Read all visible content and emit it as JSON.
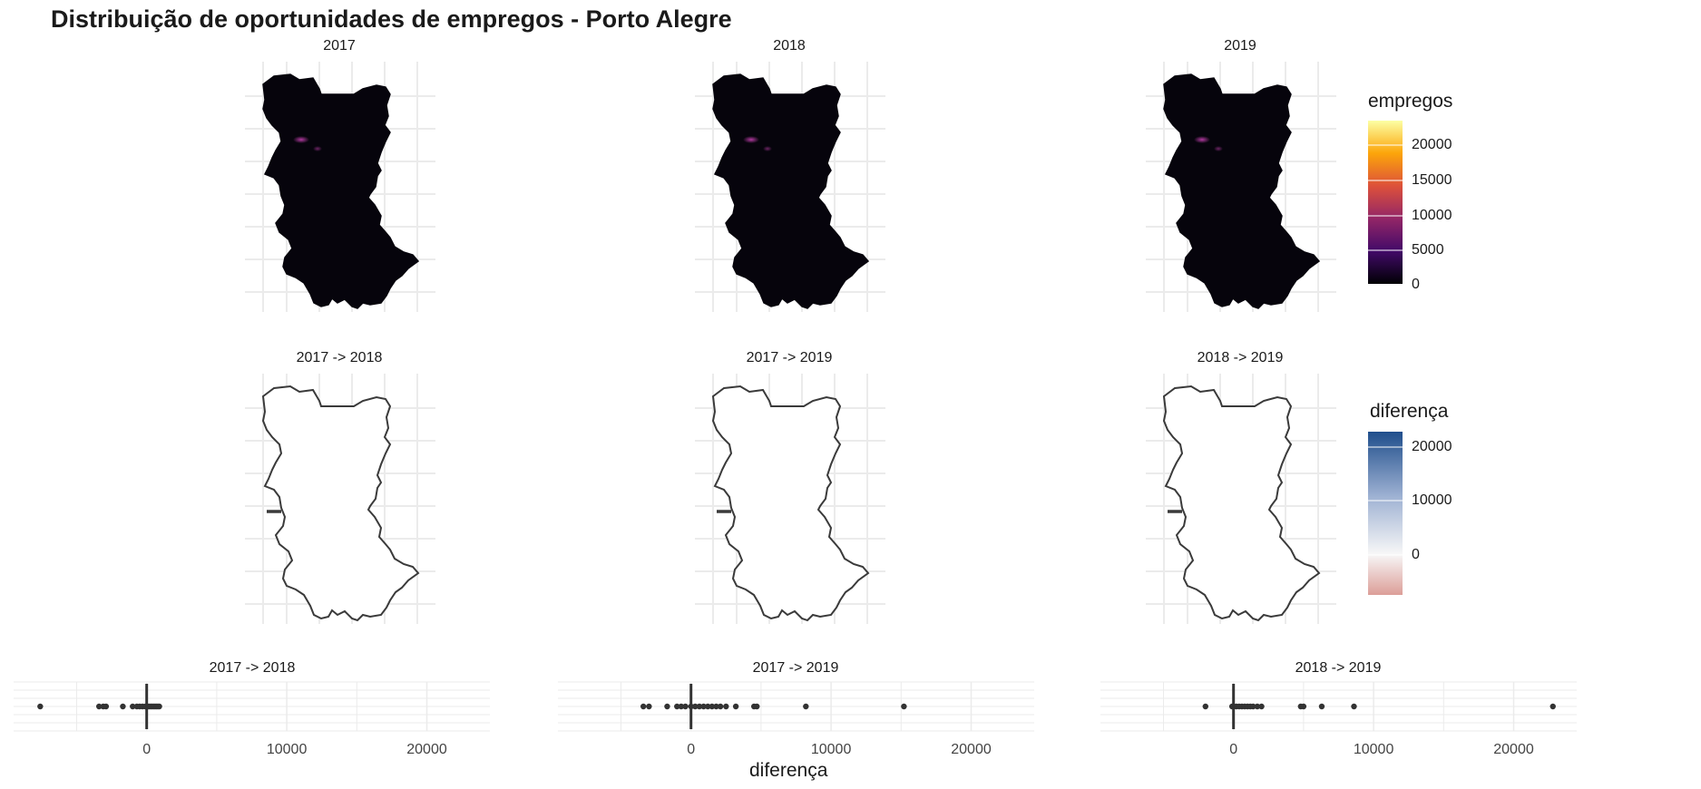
{
  "title": "Distribuição de oportunidades de empregos - Porto Alegre",
  "colors": {
    "map_fill": "#06040c",
    "diff_outline": "#3a3a3a",
    "point": "#333333",
    "grid": "#ebebeb",
    "legend_inferno": [
      "#000004",
      "#420a68",
      "#932667",
      "#dd513a",
      "#fca50a",
      "#fcffa4"
    ],
    "legend_diff": [
      "#dc9e98",
      "#f7f7f7",
      "#9fb2d3",
      "#1f4e8c"
    ]
  },
  "chart_data": [
    {
      "type": "heatmap",
      "title": "2017"
    },
    {
      "type": "heatmap",
      "title": "2018"
    },
    {
      "type": "heatmap",
      "title": "2019"
    },
    {
      "type": "heatmap",
      "title": "2017 -> 2018"
    },
    {
      "type": "heatmap",
      "title": "2017 -> 2019"
    },
    {
      "type": "heatmap",
      "title": "2018 -> 2019"
    },
    {
      "type": "scatter",
      "title": "2017 -> 2018",
      "values": [
        -7600,
        -3400,
        -3100,
        -2900,
        -1700,
        -1000,
        -700,
        -500,
        -300,
        -100,
        0,
        100,
        200,
        300,
        400,
        500,
        600,
        700,
        800,
        900
      ],
      "xlim": [
        -9500,
        24500
      ],
      "xticks": [
        "0",
        "10000",
        "20000"
      ]
    },
    {
      "type": "scatter",
      "title": "2017 -> 2019",
      "values": [
        -3400,
        -3000,
        -1700,
        -1000,
        -700,
        -400,
        0,
        300,
        600,
        900,
        1200,
        1500,
        1800,
        2100,
        2500,
        3200,
        4500,
        4700,
        8200,
        15200
      ],
      "xlim": [
        -9500,
        24500
      ],
      "xticks": [
        "0",
        "10000",
        "20000"
      ]
    },
    {
      "type": "scatter",
      "title": "2018 -> 2019",
      "values": [
        -2000,
        -100,
        0,
        200,
        400,
        600,
        800,
        1000,
        1200,
        1400,
        1700,
        2000,
        4800,
        5000,
        6300,
        8600,
        22800
      ],
      "xlim": [
        -9500,
        24500
      ],
      "xticks": [
        "0",
        "10000",
        "20000"
      ]
    }
  ],
  "legend_empregos": {
    "title": "empregos",
    "ticks": [
      "20000",
      "15000",
      "10000",
      "5000",
      "0"
    ]
  },
  "legend_diferenca": {
    "title": "diferença",
    "ticks": [
      "20000",
      "10000",
      "0"
    ]
  },
  "xlabel": "diferença"
}
